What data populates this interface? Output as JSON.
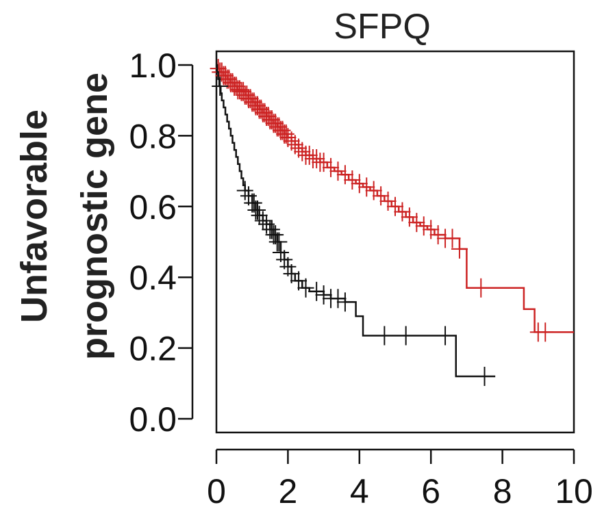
{
  "chart_data": {
    "type": "line",
    "title": "SFPQ",
    "ylabel_lines": [
      "Unfavorable",
      "prognostic gene"
    ],
    "xlabel": "",
    "xlim": [
      0,
      10
    ],
    "ylim": [
      0,
      1.04
    ],
    "xticks": [
      "0",
      "2",
      "4",
      "6",
      "8",
      "10"
    ],
    "yticks": [
      "0.0",
      "0.2",
      "0.4",
      "0.6",
      "0.8",
      "1.0"
    ],
    "grid": false,
    "series": [
      {
        "color": "#cc2222",
        "steps": [
          [
            0,
            1.0
          ],
          [
            0.05,
            0.99
          ],
          [
            0.1,
            0.98
          ],
          [
            0.2,
            0.97
          ],
          [
            0.3,
            0.96
          ],
          [
            0.4,
            0.95
          ],
          [
            0.5,
            0.94
          ],
          [
            0.6,
            0.93
          ],
          [
            0.7,
            0.925
          ],
          [
            0.8,
            0.915
          ],
          [
            0.9,
            0.905
          ],
          [
            1.0,
            0.895
          ],
          [
            1.1,
            0.885
          ],
          [
            1.2,
            0.875
          ],
          [
            1.3,
            0.865
          ],
          [
            1.4,
            0.855
          ],
          [
            1.5,
            0.845
          ],
          [
            1.6,
            0.835
          ],
          [
            1.7,
            0.825
          ],
          [
            1.8,
            0.815
          ],
          [
            1.9,
            0.805
          ],
          [
            2.0,
            0.795
          ],
          [
            2.1,
            0.785
          ],
          [
            2.2,
            0.775
          ],
          [
            2.3,
            0.765
          ],
          [
            2.4,
            0.755
          ],
          [
            2.5,
            0.745
          ],
          [
            2.7,
            0.735
          ],
          [
            2.9,
            0.725
          ],
          [
            3.1,
            0.71
          ],
          [
            3.3,
            0.7
          ],
          [
            3.5,
            0.69
          ],
          [
            3.7,
            0.675
          ],
          [
            3.9,
            0.665
          ],
          [
            4.1,
            0.655
          ],
          [
            4.3,
            0.645
          ],
          [
            4.5,
            0.63
          ],
          [
            4.7,
            0.615
          ],
          [
            4.9,
            0.6
          ],
          [
            5.1,
            0.585
          ],
          [
            5.3,
            0.57
          ],
          [
            5.5,
            0.555
          ],
          [
            5.7,
            0.545
          ],
          [
            5.9,
            0.535
          ],
          [
            6.1,
            0.52
          ],
          [
            6.4,
            0.51
          ],
          [
            6.8,
            0.48
          ],
          [
            7.0,
            0.37
          ],
          [
            8.6,
            0.31
          ],
          [
            8.9,
            0.245
          ],
          [
            10.0,
            0.245
          ]
        ],
        "censor_x": [
          0.05,
          0.1,
          0.15,
          0.2,
          0.25,
          0.3,
          0.35,
          0.4,
          0.45,
          0.5,
          0.55,
          0.6,
          0.65,
          0.7,
          0.75,
          0.8,
          0.85,
          0.9,
          0.95,
          1.0,
          1.05,
          1.1,
          1.15,
          1.2,
          1.25,
          1.3,
          1.35,
          1.4,
          1.45,
          1.5,
          1.55,
          1.6,
          1.65,
          1.7,
          1.75,
          1.8,
          1.85,
          1.9,
          1.95,
          2.0,
          2.1,
          2.2,
          2.3,
          2.4,
          2.5,
          2.6,
          2.7,
          2.8,
          2.9,
          3.0,
          3.2,
          3.4,
          3.6,
          3.8,
          4.0,
          4.2,
          4.4,
          4.6,
          4.8,
          5.0,
          5.2,
          5.4,
          5.6,
          5.8,
          6.0,
          6.2,
          6.4,
          6.6,
          6.8,
          7.4,
          9.0,
          9.2
        ]
      },
      {
        "color": "#111111",
        "steps": [
          [
            0,
            1.0
          ],
          [
            0.02,
            0.98
          ],
          [
            0.05,
            0.96
          ],
          [
            0.08,
            0.94
          ],
          [
            0.12,
            0.92
          ],
          [
            0.15,
            0.9
          ],
          [
            0.2,
            0.88
          ],
          [
            0.25,
            0.86
          ],
          [
            0.3,
            0.84
          ],
          [
            0.35,
            0.82
          ],
          [
            0.4,
            0.8
          ],
          [
            0.45,
            0.78
          ],
          [
            0.5,
            0.76
          ],
          [
            0.55,
            0.74
          ],
          [
            0.6,
            0.72
          ],
          [
            0.65,
            0.7
          ],
          [
            0.7,
            0.68
          ],
          [
            0.75,
            0.66
          ],
          [
            0.8,
            0.645
          ],
          [
            0.9,
            0.63
          ],
          [
            1.0,
            0.61
          ],
          [
            1.1,
            0.59
          ],
          [
            1.2,
            0.575
          ],
          [
            1.3,
            0.56
          ],
          [
            1.4,
            0.55
          ],
          [
            1.5,
            0.535
          ],
          [
            1.6,
            0.52
          ],
          [
            1.7,
            0.5
          ],
          [
            1.8,
            0.47
          ],
          [
            1.9,
            0.45
          ],
          [
            2.0,
            0.43
          ],
          [
            2.1,
            0.41
          ],
          [
            2.2,
            0.39
          ],
          [
            2.4,
            0.37
          ],
          [
            2.6,
            0.36
          ],
          [
            3.0,
            0.35
          ],
          [
            3.2,
            0.34
          ],
          [
            3.6,
            0.33
          ],
          [
            3.9,
            0.29
          ],
          [
            4.1,
            0.235
          ],
          [
            6.7,
            0.12
          ],
          [
            7.8,
            0.12
          ]
        ],
        "censor_x": [
          0.1,
          0.8,
          0.9,
          1.0,
          1.05,
          1.1,
          1.15,
          1.2,
          1.3,
          1.4,
          1.5,
          1.55,
          1.6,
          1.65,
          1.7,
          1.75,
          1.8,
          1.9,
          2.0,
          2.1,
          2.3,
          2.5,
          2.8,
          3.0,
          3.2,
          3.4,
          3.6,
          4.7,
          5.3,
          6.4,
          7.5
        ]
      }
    ]
  }
}
